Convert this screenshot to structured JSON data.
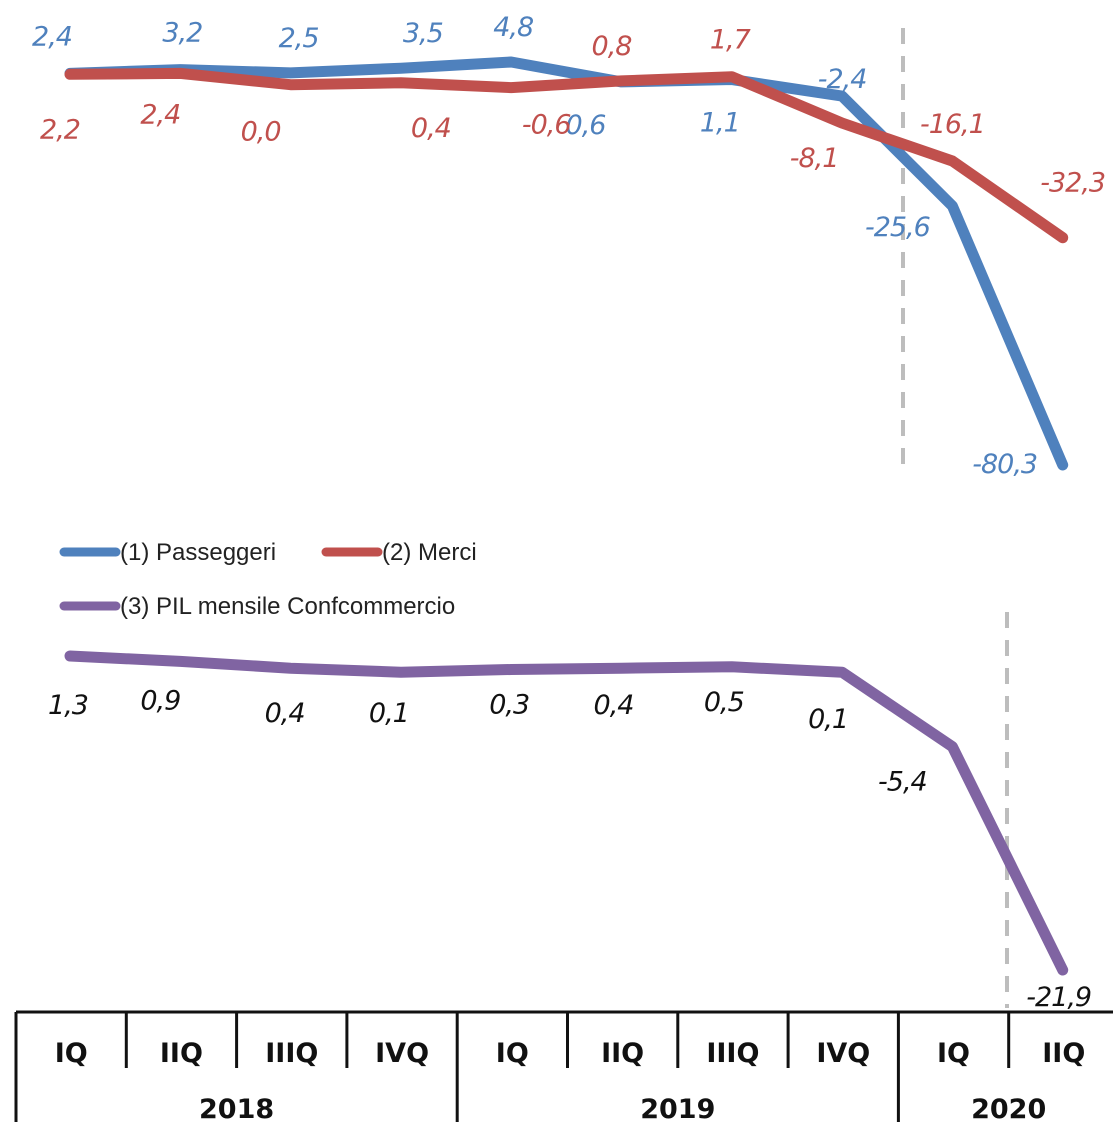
{
  "chart_data": [
    {
      "type": "line",
      "categories": [
        "IQ",
        "IIQ",
        "IIIQ",
        "IVQ",
        "IQ",
        "IIQ",
        "IIIQ",
        "IVQ",
        "IQ",
        "IIQ"
      ],
      "years": [
        {
          "label": "2018",
          "span": 4
        },
        {
          "label": "2019",
          "span": 4
        },
        {
          "label": "2020",
          "span": 2
        }
      ],
      "series": [
        {
          "name": "(1) Passeggeri",
          "color": "#4f81bd",
          "values": [
            2.4,
            3.2,
            2.5,
            3.5,
            4.8,
            0.6,
            1.1,
            -2.4,
            -25.6,
            -80.3
          ],
          "labels": [
            "2,4",
            "3,2",
            "2,5",
            "3,5",
            "4,8",
            "0,6",
            "1,1",
            "-2,4",
            "-25,6",
            "-80,3"
          ]
        },
        {
          "name": "(2) Merci",
          "color": "#c0504d",
          "values": [
            2.2,
            2.4,
            0.0,
            0.4,
            -0.6,
            0.8,
            1.7,
            -8.1,
            -16.1,
            -32.3
          ],
          "labels": [
            "2,2",
            "2,4",
            "0,0",
            "0,4",
            "-0,6",
            "0,8",
            "1,7",
            "-8,1",
            "-16,1",
            "-32,3"
          ]
        }
      ],
      "ylim": [
        -80.3,
        4.8
      ],
      "grid": false,
      "legend": "bottom-left"
    },
    {
      "type": "line",
      "categories": [
        "IQ",
        "IIQ",
        "IIIQ",
        "IVQ",
        "IQ",
        "IIQ",
        "IIIQ",
        "IVQ",
        "IQ",
        "IIQ"
      ],
      "series": [
        {
          "name": "(3) PIL mensile Confcommercio",
          "color": "#8064a2",
          "values": [
            1.3,
            0.9,
            0.4,
            0.1,
            0.3,
            0.4,
            0.5,
            0.1,
            -5.4,
            -21.9
          ],
          "labels": [
            "1,3",
            "0,9",
            "0,4",
            "0,1",
            "0,3",
            "0,4",
            "0,5",
            "0,1",
            "-5,4",
            "-21,9"
          ]
        }
      ],
      "ylim": [
        -21.9,
        1.3
      ],
      "grid": false,
      "legend": "top-left"
    }
  ]
}
